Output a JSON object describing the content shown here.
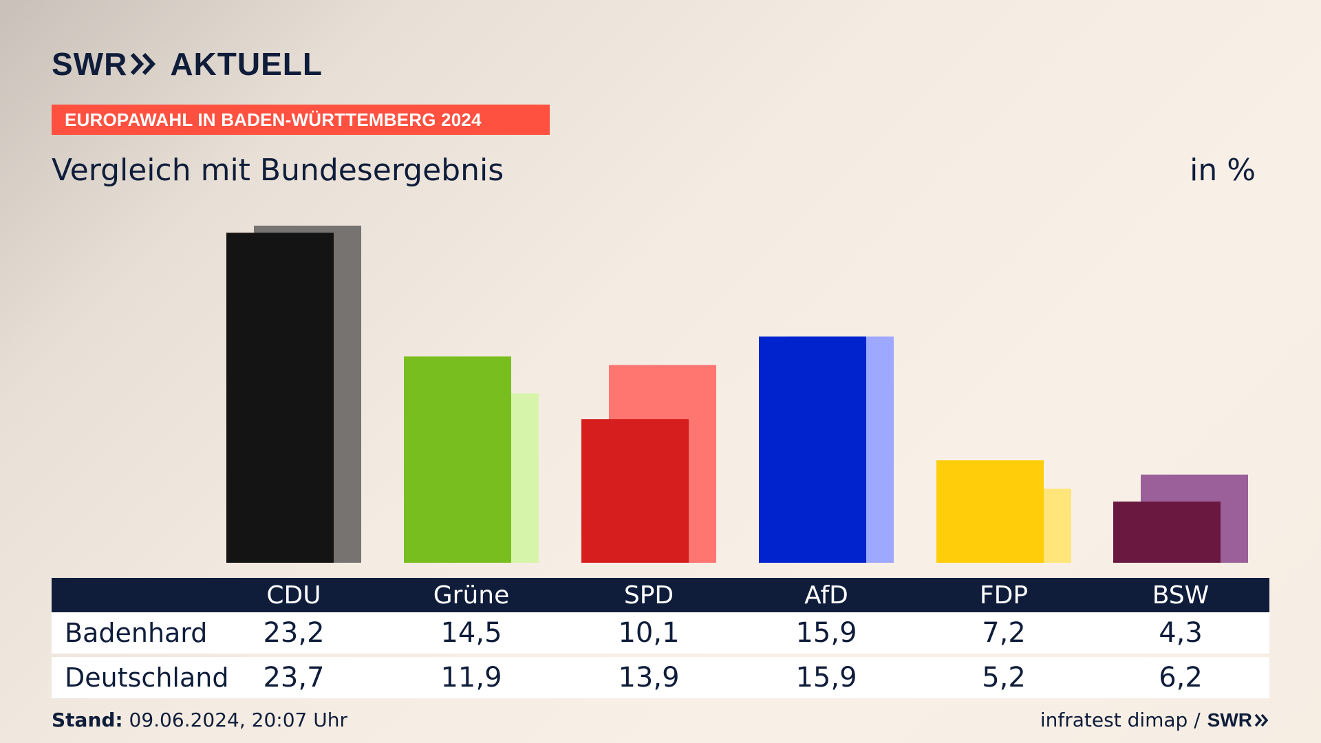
{
  "header": {
    "logo_swr": "SWR",
    "logo_brand": "AKTUELL",
    "banner": "EUROPAWAHL IN BADEN-WÜRTTEMBERG 2024",
    "title": "Vergleich mit Bundesergebnis",
    "unit": "in %"
  },
  "colors": {
    "banner": "#ff5040",
    "navy": "#0f1d3b"
  },
  "chart_data": {
    "type": "bar",
    "categories": [
      "CDU",
      "Grüne",
      "SPD",
      "AfD",
      "FDP",
      "BSW"
    ],
    "series": [
      {
        "name": "Badenhard",
        "values": [
          23.2,
          14.5,
          10.1,
          15.9,
          7.2,
          4.3
        ],
        "colors": [
          "#141414",
          "#78be1e",
          "#d61e1e",
          "#0023cd",
          "#ffcd0a",
          "#6b1841"
        ]
      },
      {
        "name": "Deutschland",
        "values": [
          23.7,
          11.9,
          13.9,
          15.9,
          5.2,
          6.2
        ],
        "colors": [
          "#777370",
          "#d6f5aa",
          "#ff7570",
          "#9da8ff",
          "#ffe57a",
          "#9b6099"
        ]
      }
    ],
    "title": "Vergleich mit Bundesergebnis",
    "ylabel": "in %",
    "ylim": [
      0,
      25
    ],
    "grid": false,
    "legend": "none"
  },
  "table": {
    "header": [
      "CDU",
      "Grüne",
      "SPD",
      "AfD",
      "FDP",
      "BSW"
    ],
    "rows": [
      {
        "label": "Badenhard",
        "values": [
          "23,2",
          "14,5",
          "10,1",
          "15,9",
          "7,2",
          "4,3"
        ]
      },
      {
        "label": "Deutschland",
        "values": [
          "23,7",
          "11,9",
          "13,9",
          "15,9",
          "5,2",
          "6,2"
        ]
      }
    ]
  },
  "footer": {
    "stand_label": "Stand:",
    "stand_value": "09.06.2024, 20:07 Uhr",
    "source": "infratest dimap /",
    "source_logo": "SWR"
  }
}
